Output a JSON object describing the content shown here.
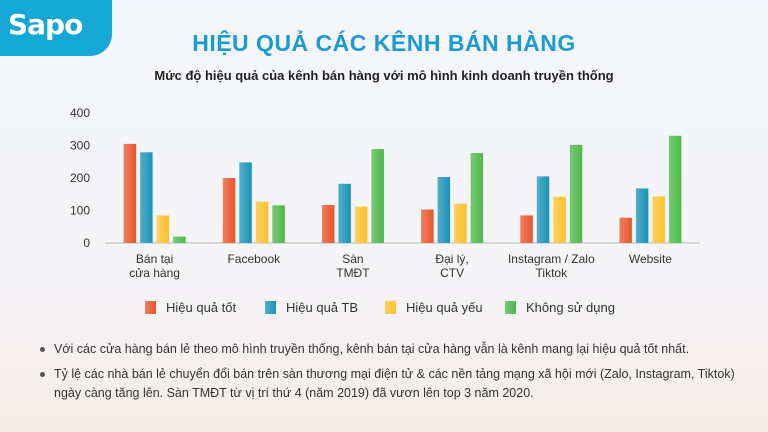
{
  "logo": {
    "text": "Sapo"
  },
  "title": "HIỆU QUẢ CÁC KÊNH BÁN HÀNG",
  "subtitle": "Mức độ hiệu quả của kênh bán hàng với mô hình kinh doanh truyền thống",
  "chart_data": {
    "type": "bar",
    "categories": [
      [
        "Bán tại",
        "cửa hàng"
      ],
      [
        "Facebook"
      ],
      [
        "Sàn",
        "TMĐT"
      ],
      [
        "Đại lý,",
        "CTV"
      ],
      [
        "Instagram / Zalo",
        "Tiktok"
      ],
      [
        "Website"
      ]
    ],
    "series": [
      {
        "name": "Hiệu quả tốt",
        "color": "#e8552a",
        "values": [
          305,
          200,
          117,
          103,
          85,
          78
        ]
      },
      {
        "name": "Hiệu quả TB",
        "color": "#1993b7",
        "values": [
          279,
          248,
          182,
          203,
          205,
          168
        ]
      },
      {
        "name": "Hiệu quả yếu",
        "color": "#fcc12c",
        "values": [
          85,
          127,
          112,
          121,
          142,
          143
        ]
      },
      {
        "name": "Không sử dụng",
        "color": "#4cb849",
        "values": [
          20,
          116,
          289,
          277,
          302,
          330
        ]
      }
    ],
    "yticks": [
      0,
      100,
      200,
      300,
      400
    ],
    "ylim": [
      0,
      400
    ],
    "grid": false,
    "legend_position": "bottom"
  },
  "notes": [
    "Với các cửa hàng bán lẻ theo mô hình truyền thống, kênh bán tại cửa hàng vẫn là kênh mang lại hiệu quả tốt nhất.",
    "Tỷ lệ các nhà bán lẻ chuyển đổi bán trên sàn thương mại điện tử & các nền tảng mạng xã hội mới (Zalo, Instagram, Tiktok) ngày càng tăng lên. Sàn TMĐT từ vị trí thứ 4 (năm 2019) đã vươn lên top 3 năm 2020."
  ]
}
